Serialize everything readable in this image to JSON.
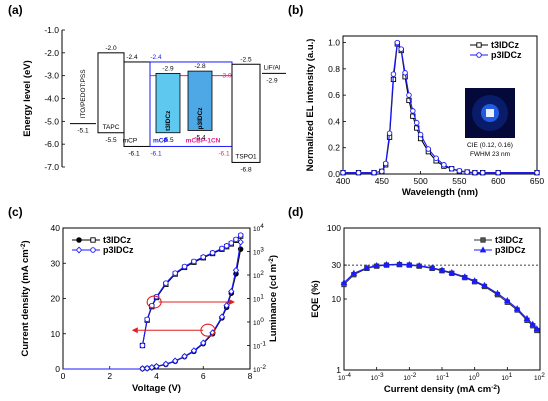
{
  "chart_data": [
    {
      "panel": "(a)",
      "type": "diagram",
      "ylabel": "Energy level (eV)",
      "ylim": [
        -7.0,
        -1.0
      ],
      "yticks": [
        "-1.0",
        "-2.0",
        "-3.0",
        "-4.0",
        "-5.0",
        "-6.0",
        "-7.0"
      ],
      "layers": [
        {
          "name": "ITO/PEDOT:PSS",
          "top": null,
          "bottom": -5.1,
          "top_label": "",
          "bottom_label": "-5.1",
          "fill": "#ffffff"
        },
        {
          "name": "TAPC",
          "top": -2.0,
          "bottom": -5.5,
          "top_label": "-2.0",
          "bottom_label": "-5.5",
          "fill": "#ffffff"
        },
        {
          "name": "mCP",
          "top": -2.4,
          "bottom": -6.1,
          "top_label": "-2.4",
          "bottom_label": "-6.1",
          "fill": "#ffffff"
        },
        {
          "name": "t3IDCz",
          "top": -2.9,
          "bottom": -5.5,
          "top_label": "-2.9",
          "bottom_label": "-5.5",
          "fill": "#5ec8ef"
        },
        {
          "name": "p3IDCz",
          "top": -2.8,
          "bottom": -5.4,
          "top_label": "-2.8",
          "bottom_label": "-5.4",
          "fill": "#4fa8e6"
        },
        {
          "name": "TSPO1",
          "top": -2.5,
          "bottom": -6.8,
          "top_label": "-2.5",
          "bottom_label": "-6.8",
          "fill": "#ffffff"
        },
        {
          "name": "LiF/Al",
          "top": -2.9,
          "bottom": null,
          "top_label": "-2.9",
          "bottom_label": "",
          "fill": "#ffffff"
        }
      ],
      "host_box": {
        "top": -2.4,
        "bottom": -6.1,
        "top_label": "-2.4",
        "bottom_label": "-6.1",
        "host_label": "mCP",
        "color": "#1a1aff"
      },
      "cohost_box": {
        "top": -3.0,
        "bottom": -6.1,
        "top_label": "-3.0",
        "bottom_label": "-6.1",
        "host_label": "mCBP-1CN",
        "color": "#e0208a"
      }
    },
    {
      "panel": "(b)",
      "type": "line",
      "xlabel": "Wavelength (nm)",
      "ylabel": "Normalized EL intensity (a.u.)",
      "xlim": [
        400,
        650
      ],
      "ylim": [
        0,
        1.05
      ],
      "xticks": [
        400,
        450,
        500,
        550,
        600,
        650
      ],
      "yticks": [
        0.0,
        0.2,
        0.4,
        0.6,
        0.8,
        1.0
      ],
      "x": [
        400,
        420,
        440,
        450,
        455,
        460,
        465,
        470,
        475,
        480,
        485,
        490,
        495,
        500,
        510,
        520,
        530,
        540,
        550,
        560,
        570,
        580,
        600,
        650
      ],
      "series": [
        {
          "name": "t3IDCz",
          "color": "#000000",
          "values": [
            0.01,
            0.01,
            0.01,
            0.02,
            0.07,
            0.28,
            0.72,
            0.99,
            0.94,
            0.74,
            0.56,
            0.44,
            0.35,
            0.27,
            0.17,
            0.1,
            0.06,
            0.04,
            0.02,
            0.015,
            0.01,
            0.01,
            0.01,
            0.01
          ]
        },
        {
          "name": "p3IDCz",
          "color": "#1a1aff",
          "values": [
            0.01,
            0.01,
            0.01,
            0.02,
            0.08,
            0.31,
            0.76,
            1.0,
            0.95,
            0.77,
            0.6,
            0.48,
            0.39,
            0.3,
            0.19,
            0.12,
            0.07,
            0.04,
            0.025,
            0.015,
            0.01,
            0.01,
            0.01,
            0.01
          ]
        }
      ],
      "annotations": [
        "CIE (0.12, 0.16)",
        "FWHM 23 nm"
      ]
    },
    {
      "panel": "(c)",
      "type": "line",
      "xlabel": "Voltage (V)",
      "ylabel": "Current density (mA cm",
      "ylabel_right": "Luminance (cd m",
      "ylabel_sup": "-2",
      "ylabel_close": ")",
      "xlim": [
        0,
        8
      ],
      "ylim": [
        0,
        40
      ],
      "y2lim_log": [
        -2,
        4
      ],
      "xticks": [
        0,
        2,
        4,
        6,
        8
      ],
      "yticks": [
        0,
        10,
        20,
        30,
        40
      ],
      "y2ticks": [
        "10",
        "10",
        "10",
        "10",
        "10",
        "10",
        "10"
      ],
      "y2tick_exps": [
        "-2",
        "-1",
        "0",
        "1",
        "2",
        "3",
        "4"
      ],
      "x": [
        3.4,
        3.6,
        3.8,
        4.0,
        4.4,
        4.8,
        5.2,
        5.6,
        6.0,
        6.4,
        6.8,
        7.0,
        7.2,
        7.4,
        7.6
      ],
      "series": [
        {
          "name": "t3IDCz",
          "color": "#000000",
          "kind": "current",
          "values": [
            0.1,
            0.2,
            0.4,
            0.7,
            1.3,
            2.2,
            3.5,
            5.0,
            7.2,
            10.0,
            14.5,
            17.5,
            21.5,
            27.0,
            34.0
          ]
        },
        {
          "name": "p3IDCz",
          "color": "#1a1aff",
          "kind": "current",
          "values": [
            0.1,
            0.2,
            0.45,
            0.75,
            1.4,
            2.3,
            3.6,
            5.2,
            7.4,
            10.3,
            14.8,
            18.0,
            22.0,
            28.0,
            36.0
          ]
        },
        {
          "name": "t3IDCz",
          "color": "#000000",
          "kind": "luminance",
          "values": [
            0.1,
            1.2,
            4.5,
            11,
            40,
            110,
            210,
            350,
            540,
            820,
            1250,
            1600,
            2100,
            3000,
            4500
          ]
        },
        {
          "name": "p3IDCz",
          "color": "#1a1aff",
          "kind": "luminance",
          "values": [
            0.1,
            1.3,
            5.0,
            12,
            45,
            120,
            230,
            380,
            580,
            880,
            1350,
            1750,
            2300,
            3300,
            5000
          ]
        }
      ]
    },
    {
      "panel": "(d)",
      "type": "line",
      "xlabel": "Current density (mA cm",
      "xlabel_sup": "-2",
      "xlabel_close": ")",
      "ylabel": "EQE (%)",
      "xlim_log": [
        -4,
        2
      ],
      "ylim_log": [
        0,
        2
      ],
      "xtick_exps": [
        "-4",
        "-3",
        "-2",
        "-1",
        "0",
        "1",
        "2"
      ],
      "yticks": [
        "1",
        "10",
        "30",
        "100"
      ],
      "reference_line": 30,
      "x": [
        0.0001,
        0.0002,
        0.0005,
        0.001,
        0.002,
        0.005,
        0.01,
        0.02,
        0.05,
        0.1,
        0.2,
        0.5,
        1,
        2,
        5,
        10,
        20,
        40,
        60,
        80
      ],
      "series": [
        {
          "name": "t3IDCz",
          "color": "#333333",
          "values": [
            16,
            22,
            27,
            29,
            30,
            30.5,
            30,
            29,
            27,
            25,
            23,
            20,
            17.5,
            15,
            11.5,
            9,
            7,
            5,
            4.2,
            3.6
          ]
        },
        {
          "name": "p3IDCz",
          "color": "#1a1aff",
          "values": [
            17,
            23,
            27.5,
            29.5,
            30.5,
            31,
            30.5,
            29.5,
            27.5,
            25.5,
            23.5,
            20.5,
            18,
            15.5,
            12,
            9.5,
            7.3,
            5.3,
            4.4,
            3.8
          ]
        }
      ]
    }
  ]
}
